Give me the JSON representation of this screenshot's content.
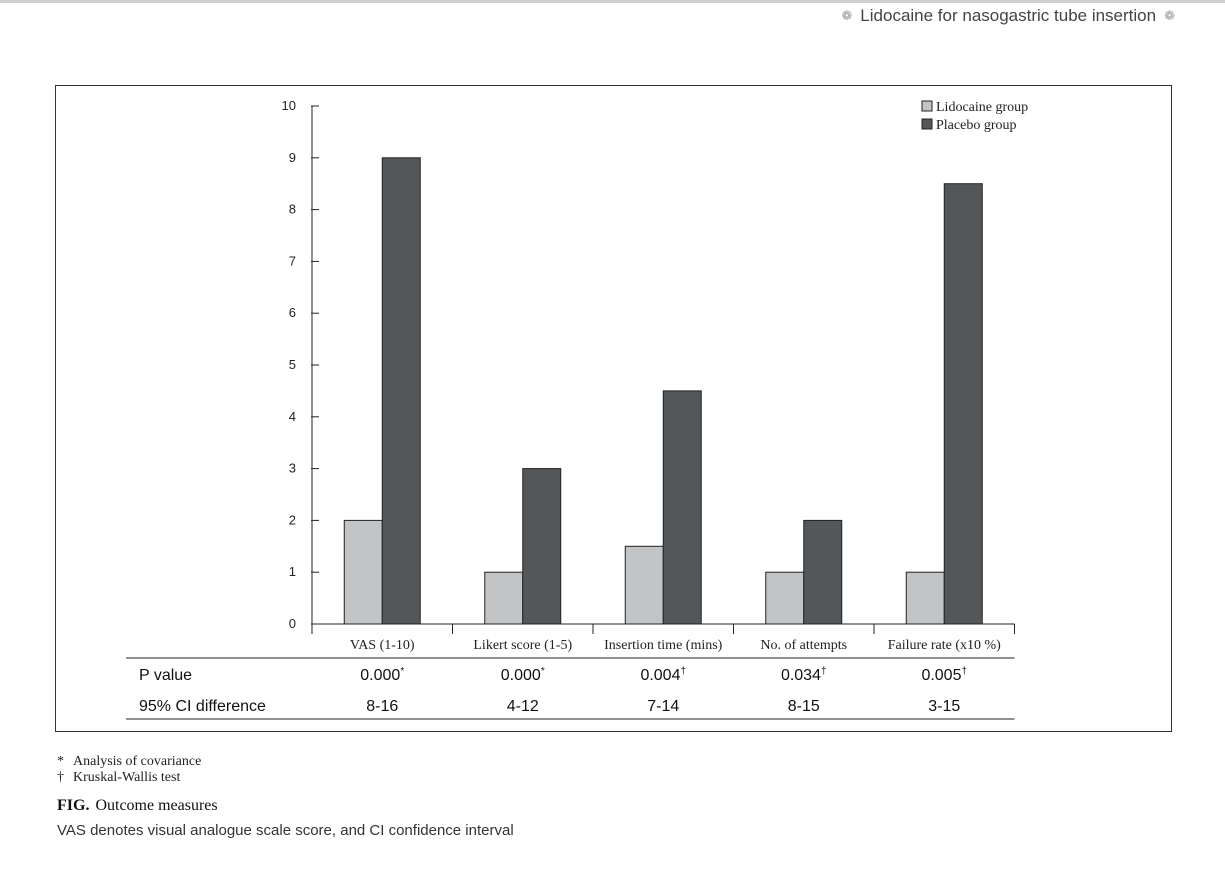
{
  "header": {
    "running_title": "Lidocaine for nasogastric tube insertion",
    "ornament_icon": "flower-ornament-icon"
  },
  "colors": {
    "lidocaine": "#c2c4c6",
    "placebo": "#54575a",
    "axis": "#222222",
    "border": "#333333"
  },
  "chart_data": {
    "type": "bar",
    "title": "",
    "xlabel": "",
    "ylabel": "",
    "categories": [
      "VAS (1-10)",
      "Likert score (1-5)",
      "Insertion time (mins)",
      "No. of attempts",
      "Failure rate (x10 %)"
    ],
    "series": [
      {
        "name": "Lidocaine group",
        "values": [
          2,
          1,
          1.5,
          1,
          1
        ]
      },
      {
        "name": "Placebo group",
        "values": [
          9,
          3,
          4.5,
          2,
          8.5
        ]
      }
    ],
    "ylim": [
      0,
      10
    ],
    "yticks": [
      "0",
      "1",
      "2",
      "3",
      "4",
      "5",
      "6",
      "7",
      "8",
      "9",
      "10"
    ],
    "grid": false,
    "legend_position": "top-right"
  },
  "stats_table": {
    "p_label": "P value",
    "ci_label": "95% CI difference",
    "p_values": [
      "0.000",
      "0.000",
      "0.004",
      "0.034",
      "0.005"
    ],
    "p_marks": [
      "*",
      "*",
      "†",
      "†",
      "†"
    ],
    "ci_values": [
      "8-16",
      "4-12",
      "7-14",
      "8-15",
      "3-15"
    ]
  },
  "footnotes": [
    {
      "mark": "*",
      "text": "Analysis of covariance"
    },
    {
      "mark": "†",
      "text": "Kruskal-Wallis test"
    }
  ],
  "caption": {
    "label": "FIG.",
    "title": "Outcome measures",
    "note": "VAS denotes visual analogue scale score, and CI confidence interval"
  }
}
